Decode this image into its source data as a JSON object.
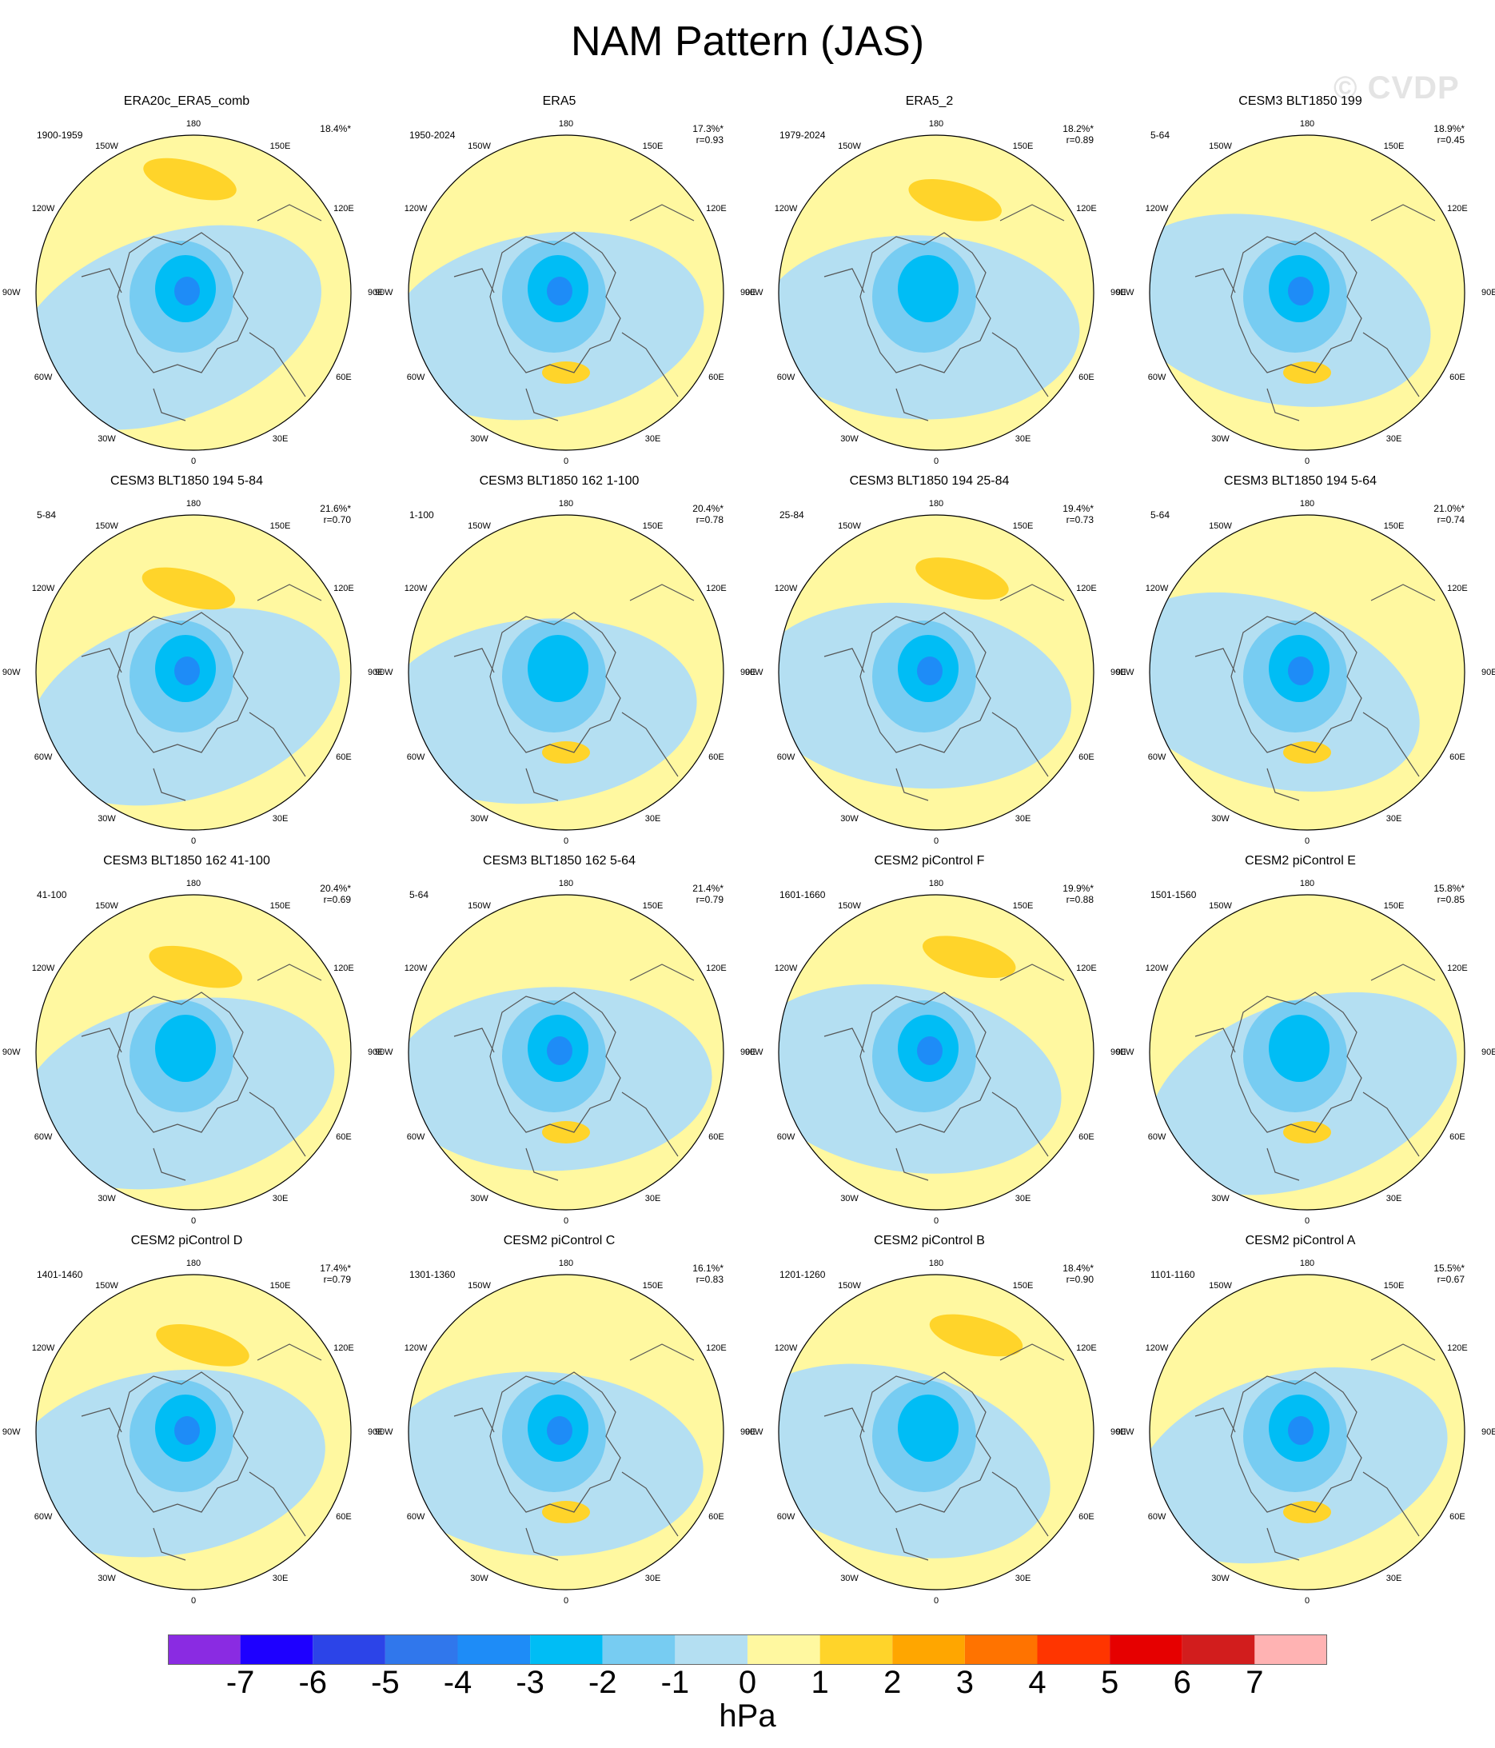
{
  "title": "NAM Pattern (JAS)",
  "watermark": "© CVDP",
  "units": "hPa",
  "lon_labels": [
    "180",
    "150E",
    "120E",
    "90E",
    "60E",
    "30E",
    "0",
    "30W",
    "60W",
    "90W",
    "120W",
    "150W"
  ],
  "colorbar": {
    "ticks": [
      "-7",
      "-6",
      "-5",
      "-4",
      "-3",
      "-2",
      "-1",
      "0",
      "1",
      "2",
      "3",
      "4",
      "5",
      "6",
      "7"
    ],
    "colors": [
      "#8a2be2",
      "#1e00ff",
      "#2c44e8",
      "#3077ec",
      "#1e8cf7",
      "#00bdf5",
      "#77ccf2",
      "#b4dff2",
      "#fff8a0",
      "#ffd42a",
      "#ffa600",
      "#ff7300",
      "#ff3500",
      "#e60000",
      "#d21d1d",
      "#ffb3b3"
    ]
  },
  "panels": [
    {
      "title": "ERA20c_ERA5_comb",
      "period": "1900-1959",
      "pct": "18.4%*",
      "r": ""
    },
    {
      "title": "ERA5",
      "period": "1950-2024",
      "pct": "17.3%*",
      "r": "r=0.93"
    },
    {
      "title": "ERA5_2",
      "period": "1979-2024",
      "pct": "18.2%*",
      "r": "r=0.89"
    },
    {
      "title": "CESM3 BLT1850 199",
      "period": "5-64",
      "pct": "18.9%*",
      "r": "r=0.45"
    },
    {
      "title": "CESM3 BLT1850 194 5-84",
      "period": "5-84",
      "pct": "21.6%*",
      "r": "r=0.70"
    },
    {
      "title": "CESM3 BLT1850 162 1-100",
      "period": "1-100",
      "pct": "20.4%*",
      "r": "r=0.78"
    },
    {
      "title": "CESM3 BLT1850 194 25-84",
      "period": "25-84",
      "pct": "19.4%*",
      "r": "r=0.73"
    },
    {
      "title": "CESM3 BLT1850 194 5-64",
      "period": "5-64",
      "pct": "21.0%*",
      "r": "r=0.74"
    },
    {
      "title": "CESM3 BLT1850 162 41-100",
      "period": "41-100",
      "pct": "20.4%*",
      "r": "r=0.69"
    },
    {
      "title": "CESM3 BLT1850 162 5-64",
      "period": "5-64",
      "pct": "21.4%*",
      "r": "r=0.79"
    },
    {
      "title": "CESM2 piControl F",
      "period": "1601-1660",
      "pct": "19.9%*",
      "r": "r=0.88"
    },
    {
      "title": "CESM2 piControl E",
      "period": "1501-1560",
      "pct": "15.8%*",
      "r": "r=0.85"
    },
    {
      "title": "CESM2 piControl D",
      "period": "1401-1460",
      "pct": "17.4%*",
      "r": "r=0.79"
    },
    {
      "title": "CESM2 piControl C",
      "period": "1301-1360",
      "pct": "16.1%*",
      "r": "r=0.83"
    },
    {
      "title": "CESM2 piControl B",
      "period": "1201-1260",
      "pct": "18.4%*",
      "r": "r=0.90"
    },
    {
      "title": "CESM2 piControl A",
      "period": "1101-1160",
      "pct": "15.5%*",
      "r": "r=0.67"
    }
  ]
}
